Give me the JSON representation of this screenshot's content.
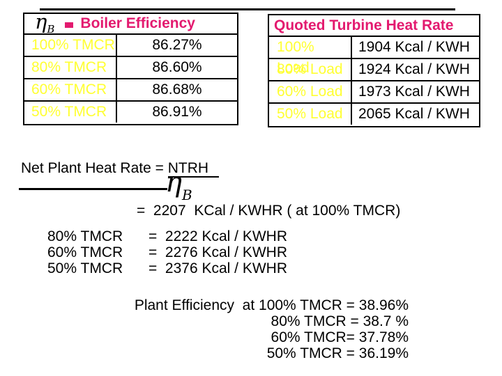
{
  "colors": {
    "accent_magenta": "#E31A6F",
    "accent_yellow": "#FFFF33",
    "text_black": "#000000",
    "background": "#FFFFFF"
  },
  "boiler_table": {
    "header": {
      "eta_symbol": "η",
      "eta_subscript": "B",
      "title": "Boiler Efficiency"
    },
    "rows": [
      {
        "label": "100% TMCR",
        "value": "86.27%"
      },
      {
        "label": "80% TMCR",
        "value": "86.60%"
      },
      {
        "label": "60% TMCR",
        "value": "86.68%"
      },
      {
        "label": "50% TMCR",
        "value": "86.91%"
      }
    ]
  },
  "turbine_table": {
    "header": {
      "title": "Quoted Turbine Heat Rate"
    },
    "rows": [
      {
        "label": "100% Load",
        "value": "1904 Kcal / KWH"
      },
      {
        "label": "80% Load",
        "value": "1924 Kcal / KWH"
      },
      {
        "label": "60% Load",
        "value": "1973 Kcal / KWH"
      },
      {
        "label": "50% Load",
        "value": "2065 Kcal / KWH"
      }
    ]
  },
  "formula": {
    "lead_text": "Net Plant Heat Rate = ",
    "numerator": "NTRH",
    "denominator_eta": "η",
    "denominator_sub": "B",
    "result_line": "=  2207  KCal / KWHR ( at 100% TMCR)"
  },
  "heat_rate_list": {
    "rows": [
      {
        "label": "80% TMCR",
        "value": "=  2222 Kcal / KWHR"
      },
      {
        "label": "60% TMCR",
        "value": "=  2276 Kcal / KWHR"
      },
      {
        "label": "50% TMCR",
        "value": "=  2376 Kcal / KWHR"
      }
    ]
  },
  "efficiency_summary": {
    "lines": [
      "Plant Efficiency  at 100% TMCR = 38.96%",
      "80% TMCR = 38.7 %",
      "60% TMCR= 37.78%",
      "50% TMCR = 36.19%"
    ]
  }
}
